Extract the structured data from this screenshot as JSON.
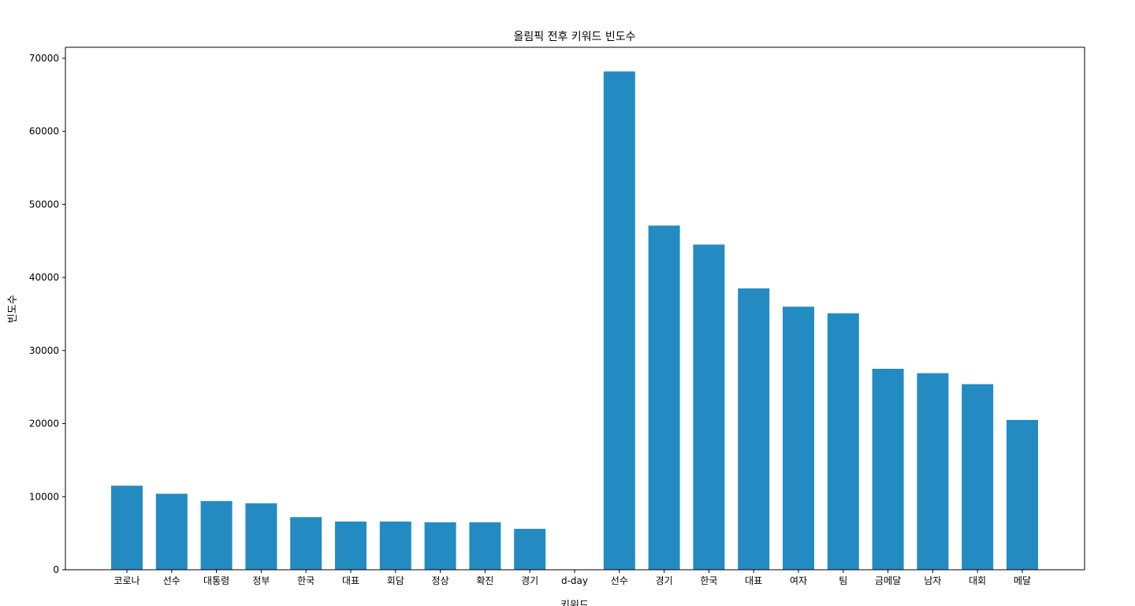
{
  "chart_data": {
    "type": "bar",
    "title": "올림픽 전후 키워드 빈도수",
    "xlabel": "키워드",
    "ylabel": "빈도수",
    "categories": [
      "코로나",
      "선수",
      "대통령",
      "정부",
      "한국",
      "대표",
      "회담",
      "정상",
      "확진",
      "경기",
      "d-day",
      "선수",
      "경기",
      "한국",
      "대표",
      "여자",
      "팀",
      "금메달",
      "남자",
      "대회",
      "메달"
    ],
    "values": [
      11500,
      10400,
      9400,
      9100,
      7200,
      6600,
      6600,
      6500,
      6500,
      5600,
      0,
      68200,
      47100,
      44500,
      38500,
      36000,
      35100,
      27500,
      26900,
      25400,
      20500
    ],
    "yticks": [
      0,
      10000,
      20000,
      30000,
      40000,
      50000,
      60000,
      70000
    ],
    "ylim": [
      0,
      71500
    ],
    "color": "#238bc2",
    "grid": false,
    "legend": "none"
  }
}
